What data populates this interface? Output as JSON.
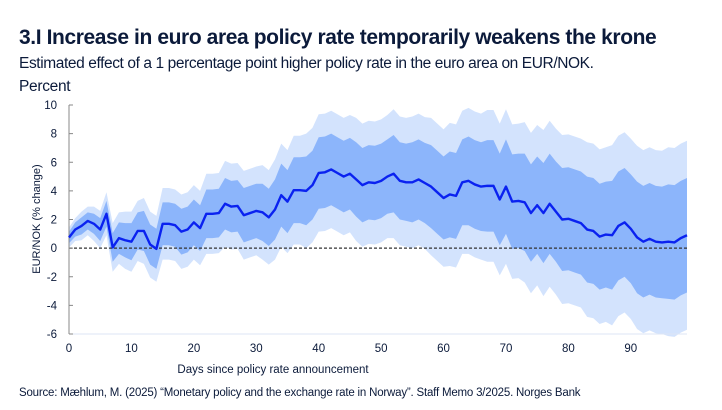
{
  "title": "3.I Increase in euro area policy rate temporarily weakens the krone",
  "subtitle": "Estimated effect of a 1 percentage point higher policy rate in the euro area on EUR/NOK.",
  "unit_label": "Percent",
  "source": "Source: Mæhlum, M. (2025) “Monetary policy and the exchange rate in Norway”. Staff Memo 3/2025. Norges Bank",
  "colors": {
    "line": "#0a22f0",
    "inner_band": "#8cb5fb",
    "outer_band": "#d3e3fd",
    "zero_line": "#333333"
  },
  "chart_data": {
    "type": "line",
    "title": "3.I Increase in euro area policy rate temporarily weakens the krone",
    "xlabel": "Days since policy rate announcement",
    "ylabel": "EUR/NOK (% change)",
    "xlim": [
      0,
      99
    ],
    "ylim": [
      -6,
      10
    ],
    "xticks": [
      0,
      10,
      20,
      30,
      40,
      50,
      60,
      70,
      80,
      90
    ],
    "yticks": [
      -6,
      -4,
      -2,
      0,
      2,
      4,
      6,
      8,
      10
    ],
    "grid": false,
    "reference_line": {
      "y": 0,
      "style": "dashed"
    },
    "x_start": 0,
    "series": [
      {
        "values": [
          0.74,
          1.3,
          1.55,
          1.9,
          1.7,
          1.3,
          2.4,
          0.05,
          0.7,
          0.55,
          0.45,
          1.2,
          1.2,
          0.25,
          -0.05,
          1.7,
          1.7,
          1.6,
          1.15,
          1.3,
          1.8,
          1.4,
          2.4,
          2.4,
          2.45,
          3.1,
          2.9,
          2.95,
          2.3,
          2.45,
          2.6,
          2.5,
          2.15,
          2.7,
          3.7,
          3.25,
          4.05,
          4.05,
          4.0,
          4.4,
          5.25,
          5.3,
          5.5,
          5.25,
          5.0,
          5.2,
          4.8,
          4.4,
          4.6,
          4.55,
          4.7,
          5.0,
          5.2,
          4.7,
          4.6,
          4.6,
          4.8,
          4.55,
          4.3,
          3.9,
          3.5,
          3.75,
          3.65,
          4.6,
          4.7,
          4.45,
          4.3,
          4.35,
          4.35,
          3.4,
          4.3,
          3.25,
          3.3,
          3.2,
          2.45,
          3.0,
          2.45,
          3.1,
          2.55,
          2.0,
          2.05,
          1.9,
          1.75,
          1.3,
          1.2,
          0.8,
          0.95,
          0.9,
          1.55,
          1.8,
          1.35,
          0.75,
          0.45,
          0.65,
          0.45,
          0.4,
          0.45,
          0.4,
          0.7,
          0.9
        ]
      }
    ],
    "bands": {
      "inner_half_width": [
        0.4,
        0.5,
        0.6,
        0.6,
        0.7,
        0.8,
        0.9,
        1.0,
        1.1,
        1.2,
        1.3,
        1.3,
        1.4,
        1.4,
        1.4,
        1.5,
        1.5,
        1.5,
        1.6,
        1.6,
        1.6,
        1.6,
        1.7,
        1.7,
        1.7,
        1.8,
        1.8,
        1.8,
        1.9,
        1.9,
        1.9,
        2.0,
        2.0,
        2.1,
        2.2,
        2.2,
        2.3,
        2.3,
        2.4,
        2.4,
        2.5,
        2.5,
        2.5,
        2.5,
        2.5,
        2.5,
        2.6,
        2.6,
        2.6,
        2.6,
        2.6,
        2.6,
        2.7,
        2.7,
        2.7,
        2.8,
        2.8,
        2.8,
        2.9,
        2.9,
        2.9,
        3.0,
        3.0,
        3.0,
        3.1,
        3.1,
        3.1,
        3.2,
        3.2,
        3.2,
        3.3,
        3.3,
        3.3,
        3.4,
        3.4,
        3.4,
        3.5,
        3.5,
        3.5,
        3.6,
        3.6,
        3.6,
        3.6,
        3.7,
        3.7,
        3.7,
        3.7,
        3.8,
        3.8,
        3.8,
        3.8,
        3.9,
        3.9,
        3.9,
        3.9,
        3.9,
        4.0,
        4.0,
        4.0,
        4.0
      ],
      "outer_half_width": [
        0.7,
        0.8,
        1.0,
        1.0,
        1.2,
        1.3,
        1.5,
        1.7,
        1.8,
        2.0,
        2.1,
        2.1,
        2.3,
        2.3,
        2.3,
        2.5,
        2.5,
        2.5,
        2.6,
        2.6,
        2.6,
        2.6,
        2.8,
        2.8,
        2.8,
        3.0,
        3.0,
        3.0,
        3.1,
        3.1,
        3.1,
        3.3,
        3.3,
        3.5,
        3.6,
        3.6,
        3.8,
        3.8,
        4.0,
        4.0,
        4.1,
        4.1,
        4.1,
        4.1,
        4.1,
        4.1,
        4.3,
        4.3,
        4.3,
        4.3,
        4.3,
        4.3,
        4.5,
        4.5,
        4.5,
        4.6,
        4.6,
        4.6,
        4.8,
        4.8,
        4.8,
        5.0,
        5.0,
        5.0,
        5.1,
        5.1,
        5.1,
        5.3,
        5.3,
        5.3,
        5.4,
        5.4,
        5.4,
        5.6,
        5.6,
        5.6,
        5.8,
        5.8,
        5.8,
        5.9,
        5.9,
        5.9,
        5.9,
        6.1,
        6.1,
        6.1,
        6.1,
        6.3,
        6.3,
        6.3,
        6.3,
        6.4,
        6.4,
        6.4,
        6.4,
        6.4,
        6.6,
        6.6,
        6.6,
        6.6
      ]
    }
  }
}
